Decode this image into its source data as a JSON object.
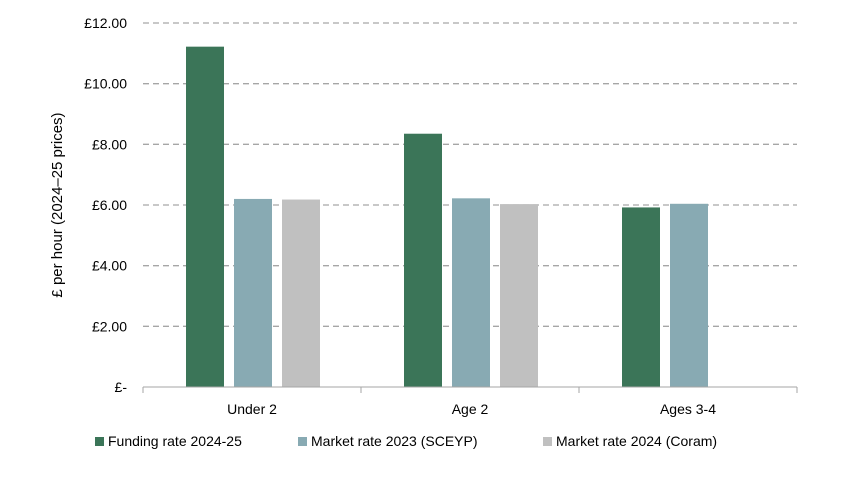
{
  "chart_data": {
    "type": "bar",
    "title": "",
    "xlabel": "",
    "ylabel": "£ per hour (2024–25 prices)",
    "ylim": [
      0,
      12
    ],
    "yticks": [
      0,
      2,
      4,
      6,
      8,
      10,
      12
    ],
    "ytick_labels": [
      "£-",
      "£2.00",
      "£4.00",
      "£6.00",
      "£8.00",
      "£10.00",
      "£12.00"
    ],
    "grid": true,
    "legend_position": "bottom",
    "categories": [
      "Under 2",
      "Age 2",
      "Ages 3-4"
    ],
    "series": [
      {
        "name": "Funding rate 2024-25",
        "color": "#3b7558",
        "values": [
          11.22,
          8.35,
          5.92
        ]
      },
      {
        "name": "Market rate 2023 (SCEYP)",
        "color": "#88aab3",
        "values": [
          6.2,
          6.22,
          6.04
        ]
      },
      {
        "name": "Market rate 2024 (Coram)",
        "color": "#c0c0c0",
        "values": [
          6.18,
          6.03,
          null
        ]
      }
    ]
  }
}
